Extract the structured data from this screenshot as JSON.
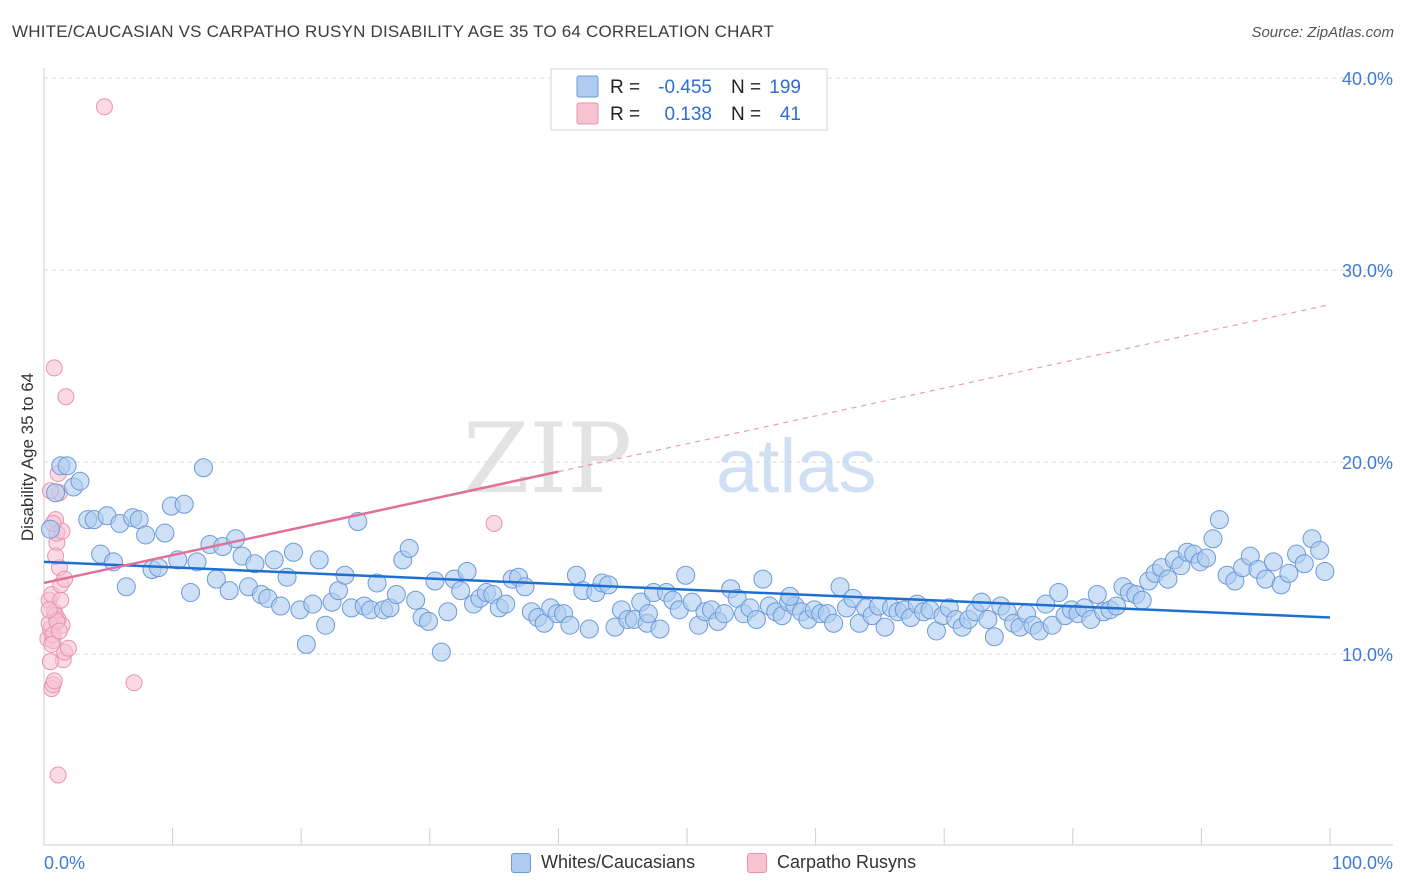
{
  "header": {
    "title": "WHITE/CAUCASIAN VS CARPATHO RUSYN DISABILITY AGE 35 TO 64 CORRELATION CHART",
    "source": "Source: ZipAtlas.com"
  },
  "watermark": {
    "zip": "ZIP",
    "atlas": "atlas"
  },
  "colors": {
    "blue_fill": "#aecbf0",
    "blue_stroke": "#6b9ad8",
    "blue_line": "#1f6fd1",
    "pink_fill": "#f7c3d3",
    "pink_stroke": "#e993b0",
    "pink_line": "#e0709a",
    "axis_label": "#3f7ad6",
    "grid": "#d9d9d9"
  },
  "stats_legend": {
    "rows": [
      {
        "r_label": "R =",
        "r_value": "-0.455",
        "n_label": "N =",
        "n_value": "199"
      },
      {
        "r_label": "R =",
        "r_value": "0.138",
        "n_label": "N =",
        "n_value": "41"
      }
    ]
  },
  "bottom_legend": {
    "series1": "Whites/Caucasians",
    "series2": "Carpatho Rusyns"
  },
  "chart_data": {
    "type": "scatter",
    "title": "WHITE/CAUCASIAN VS CARPATHO RUSYN DISABILITY AGE 35 TO 64 CORRELATION CHART",
    "xlabel": "",
    "ylabel": "Disability Age 35 to 64",
    "xlim": [
      0,
      100
    ],
    "ylim": [
      0,
      42
    ],
    "x_tick_labels": [
      "0.0%",
      "100.0%"
    ],
    "y_ticks": [
      10,
      20,
      30,
      40
    ],
    "y_tick_labels": [
      "10.0%",
      "20.0%",
      "30.0%",
      "40.0%"
    ],
    "grid": true,
    "legend_position": "top-center",
    "series": [
      {
        "name": "Whites/Caucasians",
        "r": -0.455,
        "n": 199,
        "trend": {
          "x": [
            0,
            100
          ],
          "y": [
            14.8,
            11.9
          ]
        },
        "points": [
          [
            0.5,
            16.5
          ],
          [
            0.9,
            18.4
          ],
          [
            1.3,
            19.8
          ],
          [
            1.8,
            19.8
          ],
          [
            2.3,
            18.7
          ],
          [
            2.8,
            19.0
          ],
          [
            3.4,
            17.0
          ],
          [
            3.9,
            17.0
          ],
          [
            4.4,
            15.2
          ],
          [
            4.9,
            17.2
          ],
          [
            5.4,
            14.8
          ],
          [
            5.9,
            16.8
          ],
          [
            6.4,
            13.5
          ],
          [
            6.9,
            17.1
          ],
          [
            7.4,
            17.0
          ],
          [
            7.9,
            16.2
          ],
          [
            8.4,
            14.4
          ],
          [
            8.9,
            14.5
          ],
          [
            9.4,
            16.3
          ],
          [
            9.9,
            17.7
          ],
          [
            10.4,
            14.9
          ],
          [
            10.9,
            17.8
          ],
          [
            11.4,
            13.2
          ],
          [
            11.9,
            14.8
          ],
          [
            12.4,
            19.7
          ],
          [
            12.9,
            15.7
          ],
          [
            13.4,
            13.9
          ],
          [
            13.9,
            15.6
          ],
          [
            14.4,
            13.3
          ],
          [
            14.9,
            16.0
          ],
          [
            15.4,
            15.1
          ],
          [
            15.9,
            13.5
          ],
          [
            16.4,
            14.7
          ],
          [
            16.9,
            13.1
          ],
          [
            17.4,
            12.9
          ],
          [
            17.9,
            14.9
          ],
          [
            18.4,
            12.5
          ],
          [
            18.9,
            14.0
          ],
          [
            19.4,
            15.3
          ],
          [
            19.9,
            12.3
          ],
          [
            20.4,
            10.5
          ],
          [
            20.9,
            12.6
          ],
          [
            21.4,
            14.9
          ],
          [
            21.9,
            11.5
          ],
          [
            22.4,
            12.7
          ],
          [
            22.9,
            13.3
          ],
          [
            23.4,
            14.1
          ],
          [
            23.9,
            12.4
          ],
          [
            24.4,
            16.9
          ],
          [
            24.9,
            12.5
          ],
          [
            25.4,
            12.3
          ],
          [
            25.9,
            13.7
          ],
          [
            26.4,
            12.3
          ],
          [
            26.9,
            12.4
          ],
          [
            27.4,
            13.1
          ],
          [
            27.9,
            14.9
          ],
          [
            28.4,
            15.5
          ],
          [
            28.9,
            12.8
          ],
          [
            29.4,
            11.9
          ],
          [
            29.9,
            11.7
          ],
          [
            30.4,
            13.8
          ],
          [
            30.9,
            10.1
          ],
          [
            31.4,
            12.2
          ],
          [
            31.9,
            13.9
          ],
          [
            32.4,
            13.3
          ],
          [
            32.9,
            14.3
          ],
          [
            33.4,
            12.6
          ],
          [
            33.9,
            12.9
          ],
          [
            34.4,
            13.2
          ],
          [
            34.9,
            13.1
          ],
          [
            35.4,
            12.4
          ],
          [
            35.9,
            12.6
          ],
          [
            36.4,
            13.9
          ],
          [
            36.9,
            14.0
          ],
          [
            37.4,
            13.5
          ],
          [
            37.9,
            12.2
          ],
          [
            38.4,
            11.9
          ],
          [
            38.9,
            11.6
          ],
          [
            39.4,
            12.4
          ],
          [
            39.9,
            12.1
          ],
          [
            40.4,
            12.1
          ],
          [
            40.9,
            11.5
          ],
          [
            41.4,
            14.1
          ],
          [
            41.9,
            13.3
          ],
          [
            42.4,
            11.3
          ],
          [
            42.9,
            13.2
          ],
          [
            43.4,
            13.7
          ],
          [
            43.9,
            13.6
          ],
          [
            44.4,
            11.4
          ],
          [
            44.9,
            12.3
          ],
          [
            45.4,
            11.8
          ],
          [
            45.9,
            11.8
          ],
          [
            46.4,
            12.7
          ],
          [
            46.9,
            11.6
          ],
          [
            47.4,
            13.2
          ],
          [
            47.9,
            11.3
          ],
          [
            48.4,
            13.2
          ],
          [
            48.9,
            12.8
          ],
          [
            49.4,
            12.3
          ],
          [
            49.9,
            14.1
          ],
          [
            50.4,
            12.7
          ],
          [
            50.9,
            11.5
          ],
          [
            51.4,
            12.2
          ],
          [
            51.9,
            12.3
          ],
          [
            52.4,
            11.7
          ],
          [
            52.9,
            12.1
          ],
          [
            53.4,
            13.4
          ],
          [
            53.9,
            12.9
          ],
          [
            54.4,
            12.1
          ],
          [
            54.9,
            12.4
          ],
          [
            55.4,
            11.8
          ],
          [
            55.9,
            13.9
          ],
          [
            56.4,
            12.5
          ],
          [
            56.9,
            12.2
          ],
          [
            57.4,
            12.0
          ],
          [
            57.9,
            12.7
          ],
          [
            58.4,
            12.5
          ],
          [
            58.9,
            12.2
          ],
          [
            59.4,
            11.8
          ],
          [
            59.9,
            12.3
          ],
          [
            60.4,
            12.1
          ],
          [
            60.9,
            12.1
          ],
          [
            61.4,
            11.6
          ],
          [
            61.9,
            13.5
          ],
          [
            62.4,
            12.4
          ],
          [
            62.9,
            12.9
          ],
          [
            63.4,
            11.6
          ],
          [
            63.9,
            12.4
          ],
          [
            64.4,
            12.0
          ],
          [
            64.9,
            12.5
          ],
          [
            65.4,
            11.4
          ],
          [
            65.9,
            12.4
          ],
          [
            66.4,
            12.2
          ],
          [
            66.9,
            12.3
          ],
          [
            67.4,
            11.9
          ],
          [
            67.9,
            12.6
          ],
          [
            68.4,
            12.2
          ],
          [
            68.9,
            12.3
          ],
          [
            69.4,
            11.2
          ],
          [
            69.9,
            12.0
          ],
          [
            70.4,
            12.4
          ],
          [
            70.9,
            11.8
          ],
          [
            71.4,
            11.4
          ],
          [
            71.9,
            11.8
          ],
          [
            72.4,
            12.2
          ],
          [
            72.9,
            12.7
          ],
          [
            73.4,
            11.8
          ],
          [
            73.9,
            10.9
          ],
          [
            74.4,
            12.5
          ],
          [
            74.9,
            12.2
          ],
          [
            75.4,
            11.6
          ],
          [
            75.9,
            11.4
          ],
          [
            76.4,
            12.1
          ],
          [
            76.9,
            11.5
          ],
          [
            77.4,
            11.2
          ],
          [
            77.9,
            12.6
          ],
          [
            78.4,
            11.5
          ],
          [
            78.9,
            13.2
          ],
          [
            79.4,
            12.0
          ],
          [
            79.9,
            12.3
          ],
          [
            80.4,
            12.1
          ],
          [
            80.9,
            12.4
          ],
          [
            81.4,
            11.8
          ],
          [
            81.9,
            13.1
          ],
          [
            82.4,
            12.2
          ],
          [
            82.9,
            12.3
          ],
          [
            83.4,
            12.5
          ],
          [
            83.9,
            13.5
          ],
          [
            84.4,
            13.2
          ],
          [
            84.9,
            13.1
          ],
          [
            85.4,
            12.8
          ],
          [
            85.9,
            13.8
          ],
          [
            86.4,
            14.2
          ],
          [
            86.9,
            14.5
          ],
          [
            87.4,
            13.9
          ],
          [
            87.9,
            14.9
          ],
          [
            88.4,
            14.6
          ],
          [
            88.9,
            15.3
          ],
          [
            89.4,
            15.2
          ],
          [
            89.9,
            14.8
          ],
          [
            90.4,
            15.0
          ],
          [
            90.9,
            16.0
          ],
          [
            91.4,
            17.0
          ],
          [
            92.0,
            14.1
          ],
          [
            92.6,
            13.8
          ],
          [
            93.2,
            14.5
          ],
          [
            93.8,
            15.1
          ],
          [
            94.4,
            14.4
          ],
          [
            95.0,
            13.9
          ],
          [
            95.6,
            14.8
          ],
          [
            96.2,
            13.6
          ],
          [
            96.8,
            14.2
          ],
          [
            97.4,
            15.2
          ],
          [
            98.0,
            14.7
          ],
          [
            98.6,
            16.0
          ],
          [
            99.2,
            15.4
          ],
          [
            99.6,
            14.3
          ],
          [
            58.0,
            13.0
          ],
          [
            47.0,
            12.1
          ]
        ]
      },
      {
        "name": "Carpatho Rusyns",
        "r": 0.138,
        "n": 41,
        "trend": {
          "x": [
            0,
            40
          ],
          "y": [
            13.7,
            19.5
          ],
          "dashed_to": [
            100,
            28.2
          ]
        },
        "points": [
          [
            0.3,
            10.8
          ],
          [
            0.4,
            12.8
          ],
          [
            0.5,
            11.3
          ],
          [
            0.6,
            13.1
          ],
          [
            0.7,
            10.7
          ],
          [
            0.8,
            12.2
          ],
          [
            0.9,
            12.0
          ],
          [
            1.0,
            15.8
          ],
          [
            1.1,
            11.8
          ],
          [
            1.2,
            14.5
          ],
          [
            1.3,
            13.6
          ],
          [
            1.4,
            11.5
          ],
          [
            1.5,
            9.7
          ],
          [
            1.6,
            10.1
          ],
          [
            0.5,
            9.6
          ],
          [
            0.6,
            8.2
          ],
          [
            0.7,
            8.4
          ],
          [
            0.8,
            8.6
          ],
          [
            0.9,
            17.0
          ],
          [
            1.0,
            16.3
          ],
          [
            1.1,
            19.4
          ],
          [
            1.2,
            18.4
          ],
          [
            1.3,
            12.8
          ],
          [
            1.4,
            16.4
          ],
          [
            1.7,
            23.4
          ],
          [
            0.8,
            24.9
          ],
          [
            1.9,
            10.3
          ],
          [
            0.4,
            11.6
          ],
          [
            0.7,
            11.0
          ],
          [
            0.6,
            10.5
          ],
          [
            1.0,
            11.7
          ],
          [
            0.9,
            15.1
          ],
          [
            0.5,
            18.5
          ],
          [
            0.7,
            16.8
          ],
          [
            1.1,
            3.7
          ],
          [
            1.6,
            13.9
          ],
          [
            4.7,
            38.5
          ],
          [
            35.0,
            16.8
          ],
          [
            7.0,
            8.5
          ],
          [
            1.2,
            11.2
          ],
          [
            0.4,
            12.3
          ]
        ]
      }
    ]
  }
}
